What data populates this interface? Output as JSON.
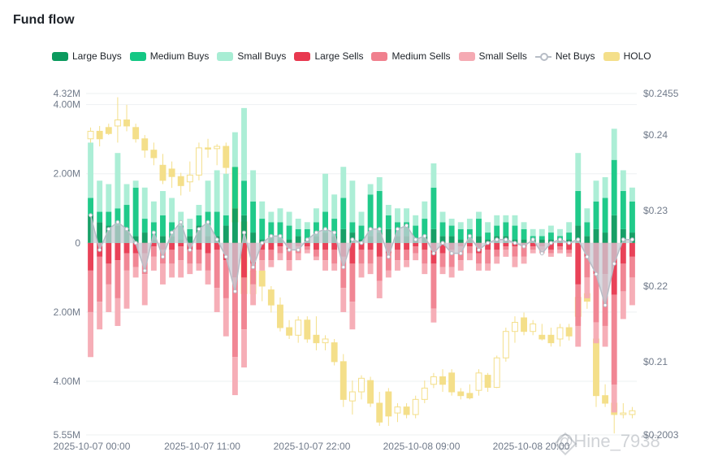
{
  "title": "Fund flow",
  "legend": {
    "large_buys": "Large Buys",
    "medium_buys": "Medium Buys",
    "small_buys": "Small Buys",
    "large_sells": "Large Sells",
    "medium_sells": "Medium Sells",
    "small_sells": "Small Sells",
    "net_buys": "Net Buys",
    "holo": "HOLO"
  },
  "colors": {
    "large_buys": "#0b9a5e",
    "medium_buys": "#14c784",
    "small_buys": "#a8edd4",
    "large_sells": "#e8384f",
    "medium_sells": "#f0808e",
    "small_sells": "#f5aab3",
    "net_buys_line": "#b7bdc6",
    "net_buys_fill": "#c9ced6",
    "holo": "#f4df8a",
    "grid": "#eef0f2"
  },
  "watermark": "@Hine_7938",
  "chart_data": {
    "type": "bar",
    "title": "Fund flow",
    "x_tick_labels": [
      "2025-10-07 00:00",
      "2025-10-07 11:00",
      "2025-10-07 22:00",
      "2025-10-08 09:00",
      "2025-10-08 20:00"
    ],
    "left_axis": {
      "min": -5.55,
      "max": 4.32,
      "unit": "M",
      "tick_values": [
        4.32,
        4.0,
        2.0,
        0,
        -2.0,
        -4.0,
        -5.55
      ],
      "tick_labels": [
        "4.32M",
        "4.00M",
        "2.00M",
        "0",
        "2.00M",
        "4.00M",
        "5.55M"
      ]
    },
    "right_axis": {
      "min": 0.2003,
      "max": 0.2455,
      "tick_values": [
        0.2455,
        0.24,
        0.23,
        0.22,
        0.21,
        0.2003
      ],
      "tick_labels": [
        "$0.2455",
        "$0.24",
        "$0.23",
        "$0.22",
        "$0.21",
        "$0.2003"
      ]
    },
    "large_buys": [
      0.8,
      0.6,
      0.5,
      0.5,
      0.4,
      0.2,
      0.3,
      0.1,
      0.2,
      0.2,
      0.1,
      0.2,
      0.5,
      0.2,
      0.2,
      0.5,
      1.0,
      0.8,
      0.3,
      0.1,
      0.2,
      0.1,
      0.1,
      0.2,
      0.1,
      0.2,
      0.3,
      0.2,
      0.4,
      0.3,
      0.1,
      0.2,
      0.3,
      0.4,
      0.2,
      0.2,
      0.1,
      0.2,
      0.4,
      0.2,
      0.2,
      0.1,
      0.1,
      0.2,
      0.1,
      0.2,
      0.2,
      0.1,
      0.1,
      0.1,
      0.1,
      0.1,
      0.1,
      0.1,
      0.5,
      0.2,
      0.4,
      0.3,
      0.8,
      0.4,
      0.3
    ],
    "medium_buys": [
      0.5,
      0.3,
      0.4,
      0.5,
      0.7,
      1.4,
      0.4,
      0.5,
      0.6,
      0.4,
      0.4,
      0.2,
      0.3,
      0.7,
      0.7,
      0.3,
      1.2,
      1.0,
      0.9,
      0.6,
      0.4,
      0.5,
      0.4,
      0.2,
      0.3,
      0.4,
      0.6,
      0.5,
      0.9,
      0.3,
      0.4,
      1.2,
      1.2,
      0.4,
      0.4,
      0.4,
      0.4,
      0.5,
      1.2,
      0.4,
      0.3,
      0.3,
      0.3,
      0.5,
      0.2,
      0.3,
      0.4,
      0.4,
      0.3,
      0.1,
      0.1,
      0.2,
      0.1,
      0.2,
      1.0,
      0.4,
      0.8,
      1.0,
      1.6,
      1.1,
      0.9
    ],
    "small_buys": [
      1.6,
      0.9,
      0.8,
      1.6,
      0.6,
      0.2,
      0.9,
      0.6,
      0.7,
      0.7,
      0.4,
      0.3,
      0.3,
      0.9,
      1.2,
      1.2,
      1.0,
      2.1,
      0.9,
      0.5,
      0.3,
      0.4,
      0.4,
      0.3,
      0.2,
      0.4,
      1.1,
      0.7,
      0.9,
      1.2,
      0.4,
      0.3,
      0.4,
      0.3,
      0.4,
      0.4,
      0.3,
      0.5,
      0.7,
      0.3,
      0.2,
      0.2,
      0.3,
      0.2,
      0.3,
      0.3,
      0.2,
      0.3,
      0.2,
      0.2,
      0.2,
      0.2,
      0.2,
      0.3,
      1.1,
      0.4,
      0.6,
      0.6,
      0.9,
      0.6,
      0.4
    ],
    "large_sells": [
      0.8,
      0.4,
      0.6,
      0.5,
      0.3,
      0.3,
      0.3,
      0.1,
      0.2,
      0.2,
      0.1,
      0.2,
      0.2,
      0.3,
      0.2,
      0.5,
      1.0,
      1.0,
      0.6,
      0.2,
      0.2,
      0.1,
      0.2,
      0.1,
      0.1,
      0.2,
      0.2,
      0.2,
      0.4,
      0.6,
      0.2,
      0.2,
      0.4,
      0.3,
      0.2,
      0.2,
      0.1,
      0.2,
      0.6,
      0.3,
      0.2,
      0.1,
      0.1,
      0.3,
      0.2,
      0.2,
      0.1,
      0.1,
      0.1,
      0.1,
      0.1,
      0.2,
      0.1,
      0.2,
      1.2,
      0.4,
      0.9,
      0.9,
      1.5,
      0.6,
      0.4
    ],
    "medium_sells": [
      1.2,
      1.3,
      0.6,
      1.1,
      0.5,
      0.4,
      0.6,
      0.3,
      0.4,
      0.4,
      0.4,
      0.4,
      0.4,
      0.5,
      1.1,
      1.1,
      2.3,
      1.5,
      0.6,
      0.3,
      0.3,
      0.2,
      0.3,
      0.2,
      0.1,
      0.2,
      0.3,
      0.4,
      0.9,
      1.1,
      0.4,
      0.4,
      0.7,
      0.5,
      0.3,
      0.3,
      0.2,
      0.4,
      1.3,
      0.4,
      0.5,
      0.4,
      0.2,
      0.3,
      0.4,
      0.2,
      0.1,
      0.3,
      0.3,
      0.1,
      0.1,
      0.1,
      0.1,
      0.1,
      1.2,
      0.6,
      1.4,
      1.5,
      2.6,
      0.8,
      0.6
    ],
    "small_sells": [
      1.3,
      0.8,
      0.8,
      0.8,
      1.1,
      0.3,
      0.9,
      0.4,
      0.6,
      0.4,
      0.5,
      0.3,
      0.2,
      0.4,
      0.7,
      1.1,
      1.1,
      1.1,
      0.6,
      0.3,
      0.2,
      0.2,
      0.3,
      0.2,
      0.1,
      0.1,
      0.3,
      0.2,
      0.7,
      0.8,
      0.4,
      0.3,
      0.5,
      0.2,
      0.3,
      0.2,
      0.2,
      0.3,
      0.4,
      0.2,
      0.3,
      0.3,
      0.2,
      0.2,
      0.2,
      0.2,
      0.2,
      0.3,
      0.2,
      0.1,
      0.1,
      0.1,
      0.1,
      0.1,
      0.6,
      0.6,
      0.6,
      0.6,
      0.8,
      0.8,
      0.8
    ],
    "net_buys": [
      0.8,
      -0.2,
      0.4,
      0.6,
      0.4,
      0.0,
      -0.8,
      0.3,
      -0.4,
      0.3,
      0.6,
      -0.2,
      0.4,
      0.6,
      0.1,
      -0.4,
      -1.4,
      0.3,
      -0.7,
      0.0,
      0.2,
      0.2,
      -0.2,
      -0.2,
      0.1,
      0.3,
      0.4,
      0.3,
      -0.7,
      0.1,
      0.0,
      0.4,
      0.4,
      -0.4,
      0.4,
      0.5,
      0.1,
      0.2,
      -0.3,
      0.0,
      -0.3,
      -0.3,
      0.2,
      -0.2,
      0.0,
      0.1,
      0.1,
      0.0,
      -0.1,
      0.1,
      -0.3,
      0.0,
      0.1,
      0.0,
      0.1,
      -0.4,
      -0.9,
      -1.8,
      -0.6,
      0.1,
      0.1
    ],
    "holo_candles": [
      [
        0.2395,
        0.2405,
        0.238,
        0.241
      ],
      [
        0.2405,
        0.2395,
        0.2385,
        0.2412
      ],
      [
        0.241,
        0.2402,
        0.24,
        0.2415
      ],
      [
        0.2412,
        0.242,
        0.239,
        0.245
      ],
      [
        0.242,
        0.2412,
        0.2405,
        0.244
      ],
      [
        0.241,
        0.2395,
        0.239,
        0.2415
      ],
      [
        0.2395,
        0.238,
        0.237,
        0.24
      ],
      [
        0.238,
        0.237,
        0.236,
        0.239
      ],
      [
        0.236,
        0.234,
        0.2335,
        0.2375
      ],
      [
        0.2355,
        0.2345,
        0.233,
        0.2365
      ],
      [
        0.2345,
        0.2333,
        0.232,
        0.235
      ],
      [
        0.2338,
        0.2347,
        0.2325,
        0.2365
      ],
      [
        0.2347,
        0.2383,
        0.234,
        0.239
      ],
      [
        0.2383,
        0.2382,
        0.237,
        0.2395
      ],
      [
        0.2382,
        0.2385,
        0.236,
        0.2388
      ],
      [
        0.2385,
        0.2357,
        0.234,
        0.239
      ],
      [
        0.2357,
        0.2285,
        0.2285,
        0.237
      ],
      [
        0.2285,
        0.219,
        0.218,
        0.229
      ],
      [
        0.219,
        0.222,
        0.2175,
        0.223
      ],
      [
        0.222,
        0.22,
        0.218,
        0.2235
      ],
      [
        0.2195,
        0.2175,
        0.2165,
        0.22
      ],
      [
        0.2175,
        0.2145,
        0.214,
        0.2185
      ],
      [
        0.2145,
        0.2135,
        0.213,
        0.2155
      ],
      [
        0.2135,
        0.2155,
        0.2125,
        0.216
      ],
      [
        0.2155,
        0.213,
        0.2125,
        0.216
      ],
      [
        0.2135,
        0.2125,
        0.2115,
        0.216
      ],
      [
        0.2125,
        0.213,
        0.2115,
        0.2135
      ],
      [
        0.2125,
        0.21,
        0.2095,
        0.213
      ],
      [
        0.21,
        0.205,
        0.204,
        0.211
      ],
      [
        0.2048,
        0.206,
        0.203,
        0.2075
      ],
      [
        0.206,
        0.2078,
        0.205,
        0.2082
      ],
      [
        0.2075,
        0.2045,
        0.204,
        0.208
      ],
      [
        0.2045,
        0.202,
        0.2015,
        0.206
      ],
      [
        0.206,
        0.2028,
        0.2015,
        0.2065
      ],
      [
        0.2032,
        0.204,
        0.202,
        0.2045
      ],
      [
        0.204,
        0.203,
        0.2025,
        0.2045
      ],
      [
        0.203,
        0.205,
        0.2025,
        0.2055
      ],
      [
        0.205,
        0.2065,
        0.2045,
        0.2075
      ],
      [
        0.207,
        0.208,
        0.2065,
        0.2085
      ],
      [
        0.208,
        0.207,
        0.206,
        0.209
      ],
      [
        0.2085,
        0.206,
        0.2055,
        0.209
      ],
      [
        0.206,
        0.2055,
        0.205,
        0.2065
      ],
      [
        0.2058,
        0.2052,
        0.205,
        0.207
      ],
      [
        0.2062,
        0.2085,
        0.2055,
        0.209
      ],
      [
        0.2082,
        0.2066,
        0.206,
        0.2085
      ],
      [
        0.2066,
        0.2105,
        0.2065,
        0.2108
      ],
      [
        0.2105,
        0.214,
        0.21,
        0.2145
      ],
      [
        0.214,
        0.2152,
        0.2125,
        0.216
      ],
      [
        0.2158,
        0.214,
        0.2135,
        0.2165
      ],
      [
        0.214,
        0.215,
        0.2135,
        0.2155
      ],
      [
        0.2135,
        0.213,
        0.2128,
        0.215
      ],
      [
        0.2135,
        0.2125,
        0.212,
        0.2145
      ],
      [
        0.213,
        0.2145,
        0.212,
        0.215
      ],
      [
        0.2145,
        0.2134,
        0.2128,
        0.215
      ],
      [
        0.216,
        0.2185,
        0.213,
        0.22
      ],
      [
        0.219,
        0.218,
        0.217,
        0.2195
      ],
      [
        0.213,
        0.2055,
        0.204,
        0.2135
      ],
      [
        0.2055,
        0.2045,
        0.204,
        0.207
      ],
      [
        0.2045,
        0.203,
        0.2005,
        0.205
      ],
      [
        0.203,
        0.2032,
        0.2025,
        0.2045
      ],
      [
        0.203,
        0.2035,
        0.2025,
        0.204
      ]
    ]
  }
}
